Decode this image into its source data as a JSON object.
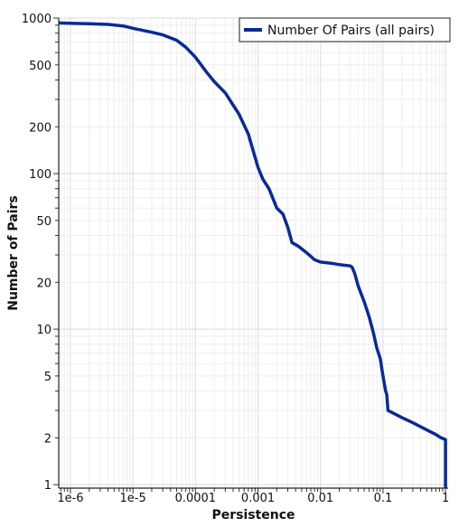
{
  "chart_data": {
    "type": "line",
    "xlabel": "Persistence",
    "ylabel": "Number of Pairs",
    "x_scale": "log",
    "y_scale": "log",
    "xlim": [
      6.5e-07,
      1.1
    ],
    "ylim": [
      0.95,
      1000
    ],
    "grid": true,
    "legend_position": "top-right",
    "x_ticks": [
      {
        "value": 1e-06,
        "label": "1e-6"
      },
      {
        "value": 1e-05,
        "label": "1e-5"
      },
      {
        "value": 0.0001,
        "label": "0.0001"
      },
      {
        "value": 0.001,
        "label": "0.001"
      },
      {
        "value": 0.01,
        "label": "0.01"
      },
      {
        "value": 0.1,
        "label": "0.1"
      },
      {
        "value": 1,
        "label": "1"
      }
    ],
    "y_ticks": [
      {
        "value": 1,
        "label": "1"
      },
      {
        "value": 2,
        "label": "2"
      },
      {
        "value": 5,
        "label": "5"
      },
      {
        "value": 10,
        "label": "10"
      },
      {
        "value": 20,
        "label": "20"
      },
      {
        "value": 50,
        "label": "50"
      },
      {
        "value": 100,
        "label": "100"
      },
      {
        "value": 200,
        "label": "200"
      },
      {
        "value": 500,
        "label": "500"
      },
      {
        "value": 1000,
        "label": "1000"
      }
    ],
    "series": [
      {
        "name": "Number Of Pairs (all pairs)",
        "color": "#0a2a96",
        "x": [
          6.5e-07,
          1e-06,
          2e-06,
          4e-06,
          7e-06,
          1e-05,
          2e-05,
          3e-05,
          5e-05,
          7e-05,
          0.0001,
          0.00015,
          0.0002,
          0.0003,
          0.0005,
          0.0007,
          0.001,
          0.0012,
          0.0015,
          0.002,
          0.0025,
          0.003,
          0.0035,
          0.0045,
          0.006,
          0.008,
          0.01,
          0.015,
          0.02,
          0.03,
          0.032,
          0.035,
          0.04,
          0.05,
          0.06,
          0.07,
          0.08,
          0.09,
          0.1,
          0.11,
          0.115,
          0.12,
          0.2,
          0.3,
          0.5,
          0.7,
          0.85,
          1.0,
          1.0
        ],
        "y": [
          930,
          925,
          920,
          910,
          890,
          860,
          810,
          780,
          720,
          650,
          560,
          450,
          390,
          330,
          240,
          180,
          110,
          92,
          80,
          60,
          55,
          45,
          36,
          34,
          31,
          28,
          27,
          26.5,
          26,
          25.5,
          25,
          23,
          19,
          15,
          12,
          9.5,
          7.5,
          6.5,
          5,
          4,
          3.8,
          3,
          2.7,
          2.5,
          2.25,
          2.1,
          2.0,
          1.95,
          0.95
        ]
      }
    ]
  }
}
